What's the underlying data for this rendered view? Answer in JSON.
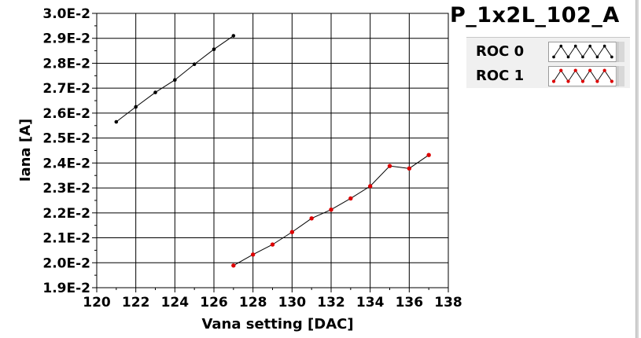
{
  "chart_data": {
    "type": "scatter",
    "title": "P_1x2L_102_A",
    "xlabel": "Vana setting [DAC]",
    "ylabel": "Iana [A]",
    "xlim": [
      120,
      138
    ],
    "ylim": [
      0.019,
      0.03
    ],
    "x_ticks": [
      "120",
      "122",
      "124",
      "126",
      "128",
      "130",
      "132",
      "134",
      "136",
      "138"
    ],
    "y_ticks": [
      "1.9E-2",
      "2.0E-2",
      "2.1E-2",
      "2.2E-2",
      "2.3E-2",
      "2.4E-2",
      "2.5E-2",
      "2.6E-2",
      "2.7E-2",
      "2.8E-2",
      "2.9E-2",
      "3.0E-2"
    ],
    "grid": true,
    "legend_position": "top-right",
    "series": [
      {
        "name": "ROC 0",
        "color": "#000000",
        "line": true,
        "x": [
          121,
          122,
          123,
          124,
          125,
          126,
          127
        ],
        "y": [
          0.02565,
          0.02625,
          0.02683,
          0.02733,
          0.02796,
          0.02856,
          0.0291
        ]
      },
      {
        "name": "ROC 1",
        "color": "#dd0000",
        "line": true,
        "x": [
          127,
          128,
          129,
          130,
          131,
          132,
          133,
          134,
          135,
          136,
          137
        ],
        "y": [
          0.01989,
          0.02033,
          0.02073,
          0.02123,
          0.02178,
          0.02213,
          0.02258,
          0.02307,
          0.02388,
          0.02378,
          0.02432
        ]
      }
    ]
  }
}
